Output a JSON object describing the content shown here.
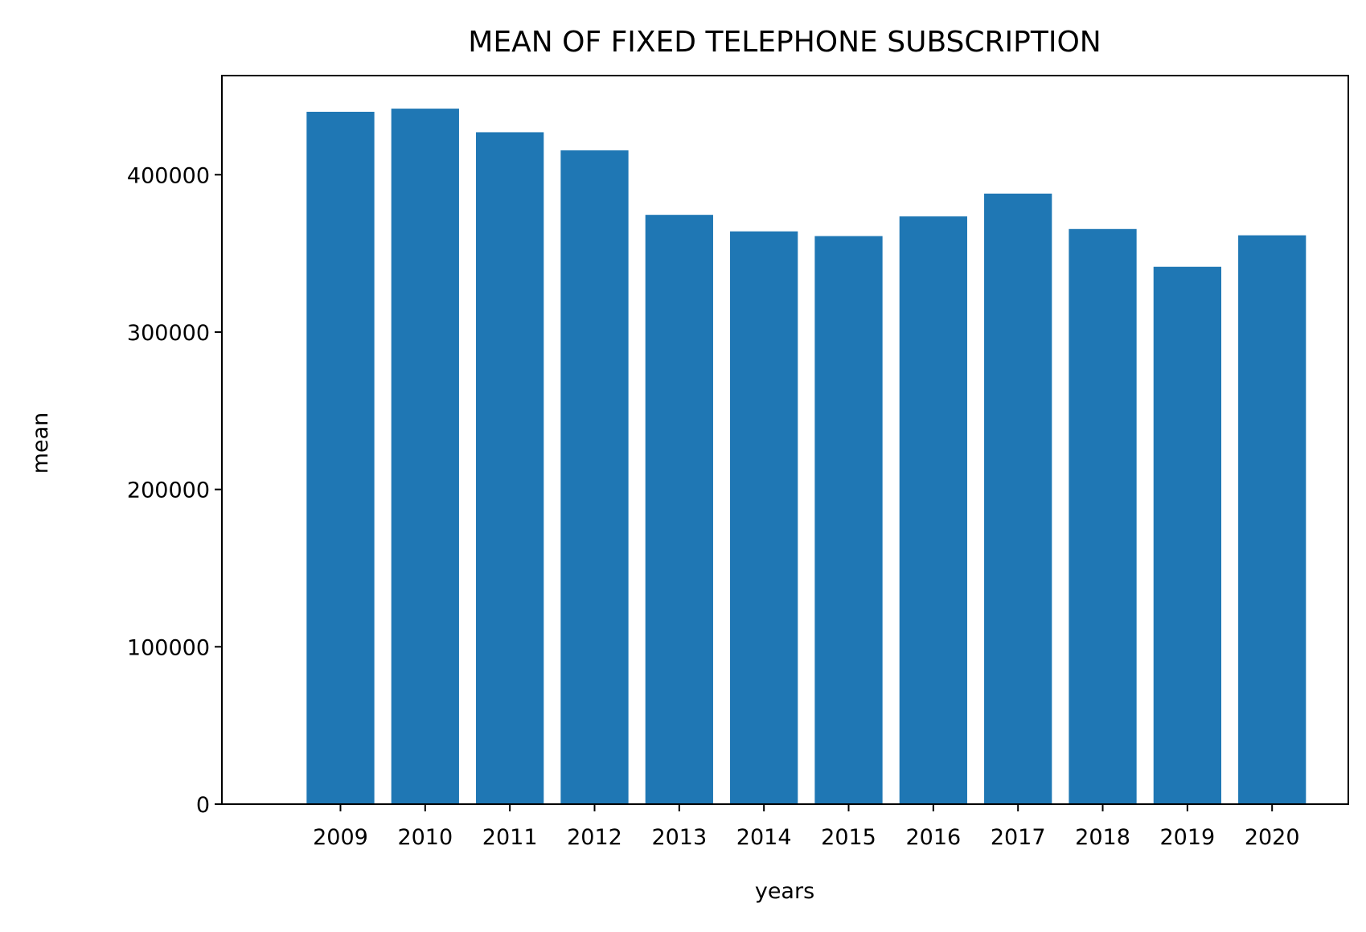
{
  "chart_data": {
    "type": "bar",
    "title": "MEAN OF FIXED TELEPHONE SUBSCRIPTION",
    "xlabel": "years",
    "ylabel": "mean",
    "categories": [
      "2009",
      "2010",
      "2011",
      "2012",
      "2013",
      "2014",
      "2015",
      "2016",
      "2017",
      "2018",
      "2019",
      "2020"
    ],
    "values": [
      440000,
      442000,
      427000,
      415500,
      374500,
      364000,
      361000,
      373500,
      388000,
      365500,
      341500,
      361500
    ],
    "ylim": [
      0,
      463000
    ],
    "yticks": [
      0,
      100000,
      200000,
      300000,
      400000
    ],
    "ytick_labels": [
      "0",
      "100000",
      "200000",
      "300000",
      "400000"
    ],
    "grid": false,
    "bar_color": "#1f77b4"
  }
}
